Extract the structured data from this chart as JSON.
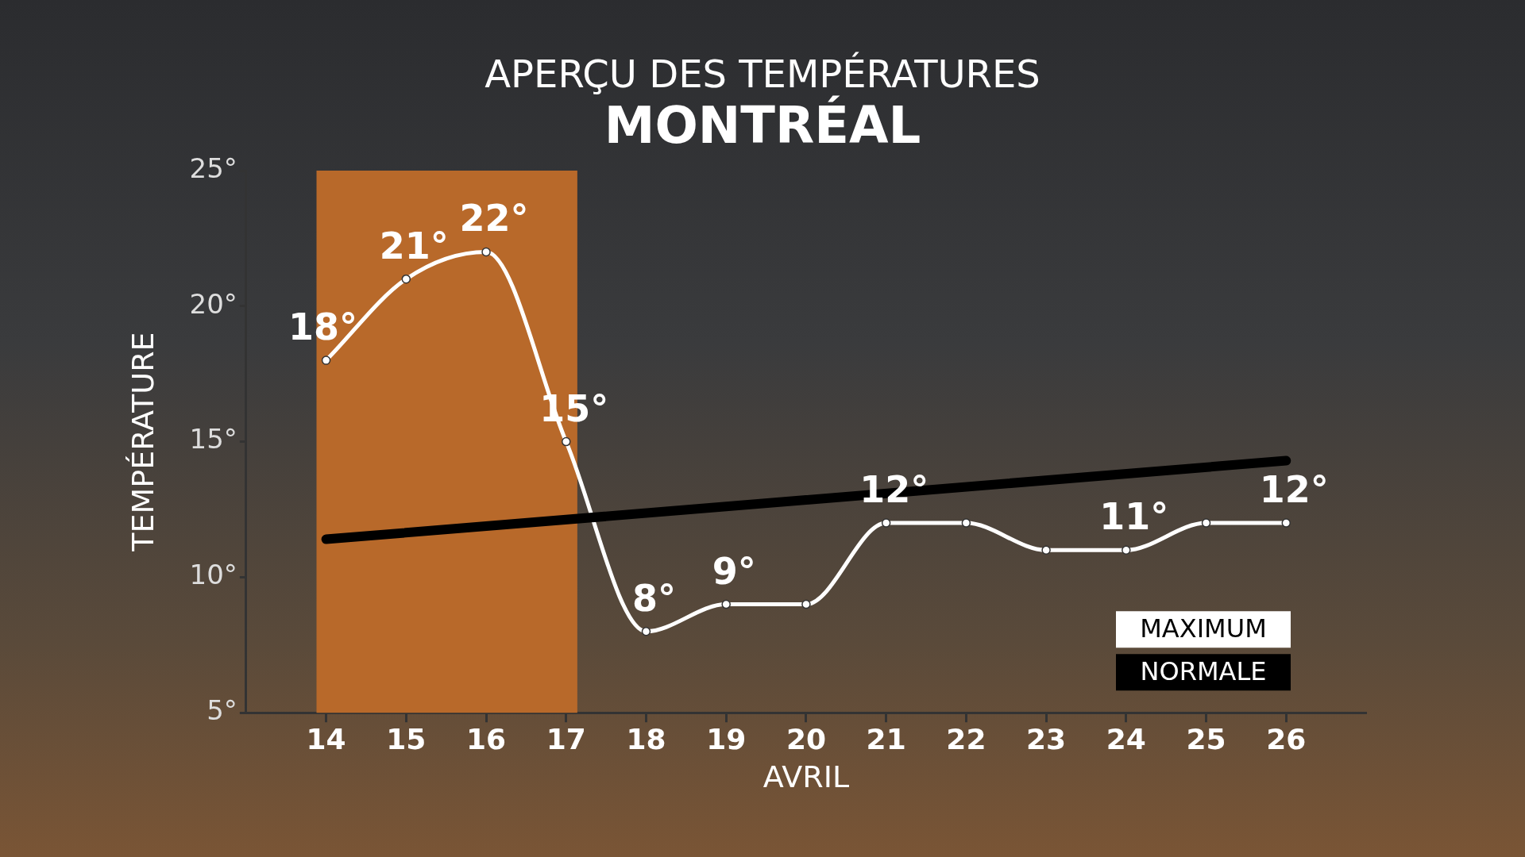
{
  "chart_data": {
    "type": "line",
    "title": "APERÇU DES TEMPÉRATURES",
    "subtitle": "MONTRÉAL",
    "xlabel": "AVRIL",
    "ylabel": "TEMPÉRATURE",
    "xlim": [
      13,
      27
    ],
    "xticks": [
      14,
      15,
      16,
      17,
      18,
      19,
      20,
      21,
      22,
      23,
      24,
      25,
      26
    ],
    "ylim": [
      5,
      25
    ],
    "yticks": [
      {
        "value": 5,
        "label": "5°"
      },
      {
        "value": 10,
        "label": "10°"
      },
      {
        "value": 15,
        "label": "15°"
      },
      {
        "value": 20,
        "label": "20°"
      },
      {
        "value": 25,
        "label": "25°"
      }
    ],
    "series": [
      {
        "name": "NORMALE",
        "color": "#000000",
        "marker": "none",
        "x": [
          14,
          26
        ],
        "values": [
          11.4,
          14.3
        ]
      },
      {
        "name": "MAXIMUM",
        "color": "#ffffff",
        "marker": "circle",
        "x": [
          14,
          15,
          16,
          17,
          18,
          19,
          20,
          21,
          22,
          23,
          24,
          25,
          26
        ],
        "values": [
          18,
          21,
          22,
          15,
          8,
          9,
          9,
          12,
          12,
          11,
          11,
          12,
          12
        ],
        "value_labels": [
          "18°",
          "21°",
          "22°",
          "15°",
          "8°",
          "9°",
          null,
          "12°",
          null,
          null,
          "11°",
          null,
          "12°"
        ]
      }
    ],
    "bands": [
      {
        "axis": "x",
        "from": 13.88,
        "to": 17.14,
        "color": "#b8692a"
      }
    ],
    "grid": false,
    "legend": "bottom right"
  }
}
